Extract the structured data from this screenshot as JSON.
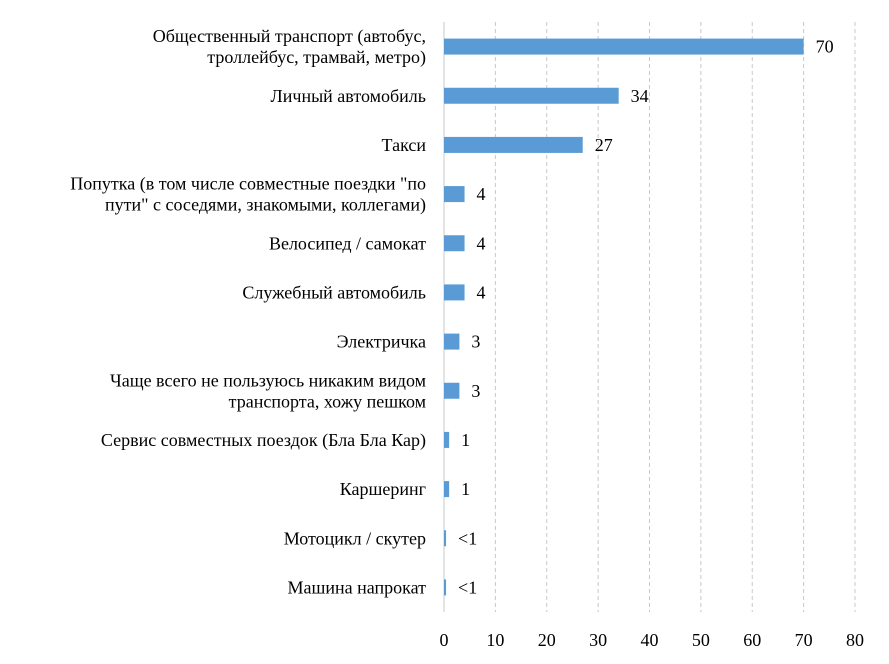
{
  "chart_data": {
    "type": "bar",
    "orientation": "horizontal",
    "title": "",
    "xlabel": "",
    "ylabel": "",
    "xlim": [
      0,
      80
    ],
    "ticks": [
      0,
      10,
      20,
      30,
      40,
      50,
      60,
      70,
      80
    ],
    "grid": true,
    "legend": "none",
    "bar_color": "#5b9bd5",
    "categories": [
      [
        "Общественный транспорт (автобус,",
        "троллейбус, трамвай, метро)"
      ],
      [
        "Личный автомобиль"
      ],
      [
        "Такси"
      ],
      [
        "Попутка (в том числе совместные поездки \"по",
        "пути\"  с соседями, знакомыми, коллегами)"
      ],
      [
        "Велосипед / самокат"
      ],
      [
        "Служебный автомобиль"
      ],
      [
        "Электричка"
      ],
      [
        "Чаще всего не пользуюсь никаким видом",
        "транспорта, хожу пешком"
      ],
      [
        "Сервис совместных поездок (Бла Бла Кар)"
      ],
      [
        "Каршеринг"
      ],
      [
        "Мотоцикл / скутер"
      ],
      [
        "Машина напрокат"
      ]
    ],
    "values": [
      70,
      34,
      27,
      4,
      4,
      4,
      3,
      3,
      1,
      1,
      0.4,
      0.4
    ],
    "value_labels": [
      "70",
      "34",
      "27",
      "4",
      "4",
      "4",
      "3",
      "3",
      "1",
      "1",
      "<1",
      "<1"
    ]
  }
}
